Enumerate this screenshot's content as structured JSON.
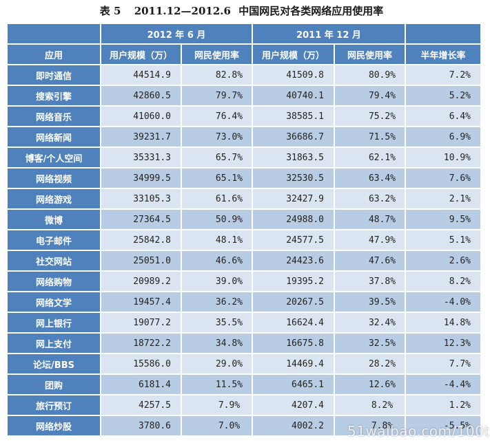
{
  "caption": {
    "table_no": "表 5",
    "date_range": "2011.12—2012.6",
    "title": "中国网民对各类网络应用使用率"
  },
  "header": {
    "period_a": "2012 年 6 月",
    "period_b": "2011 年 12 月",
    "col_app": "应用",
    "col_users_a": "用户规模（万）",
    "col_rate_a": "网民使用率",
    "col_users_b": "用户规模（万）",
    "col_rate_b": "网民使用率",
    "col_growth": "半年增长率"
  },
  "rows": [
    {
      "app": "即时通信",
      "users_2012_6": "44514.9",
      "rate_2012_6": "82.8%",
      "users_2011_12": "41509.8",
      "rate_2011_12": "80.9%",
      "growth": "7.2%"
    },
    {
      "app": "搜索引擎",
      "users_2012_6": "42860.5",
      "rate_2012_6": "79.7%",
      "users_2011_12": "40740.1",
      "rate_2011_12": "79.4%",
      "growth": "5.2%"
    },
    {
      "app": "网络音乐",
      "users_2012_6": "41060.0",
      "rate_2012_6": "76.4%",
      "users_2011_12": "38585.1",
      "rate_2011_12": "75.2%",
      "growth": "6.4%"
    },
    {
      "app": "网络新闻",
      "users_2012_6": "39231.7",
      "rate_2012_6": "73.0%",
      "users_2011_12": "36686.7",
      "rate_2011_12": "71.5%",
      "growth": "6.9%"
    },
    {
      "app": "博客/个人空间",
      "users_2012_6": "35331.3",
      "rate_2012_6": "65.7%",
      "users_2011_12": "31863.5",
      "rate_2011_12": "62.1%",
      "growth": "10.9%"
    },
    {
      "app": "网络视频",
      "users_2012_6": "34999.5",
      "rate_2012_6": "65.1%",
      "users_2011_12": "32530.5",
      "rate_2011_12": "63.4%",
      "growth": "7.6%"
    },
    {
      "app": "网络游戏",
      "users_2012_6": "33105.3",
      "rate_2012_6": "61.6%",
      "users_2011_12": "32427.9",
      "rate_2011_12": "63.2%",
      "growth": "2.1%"
    },
    {
      "app": "微博",
      "users_2012_6": "27364.5",
      "rate_2012_6": "50.9%",
      "users_2011_12": "24988.0",
      "rate_2011_12": "48.7%",
      "growth": "9.5%"
    },
    {
      "app": "电子邮件",
      "users_2012_6": "25842.8",
      "rate_2012_6": "48.1%",
      "users_2011_12": "24577.5",
      "rate_2011_12": "47.9%",
      "growth": "5.1%"
    },
    {
      "app": "社交网站",
      "users_2012_6": "25051.0",
      "rate_2012_6": "46.6%",
      "users_2011_12": "24423.6",
      "rate_2011_12": "47.6%",
      "growth": "2.6%"
    },
    {
      "app": "网络购物",
      "users_2012_6": "20989.2",
      "rate_2012_6": "39.0%",
      "users_2011_12": "19395.2",
      "rate_2011_12": "37.8%",
      "growth": "8.2%"
    },
    {
      "app": "网络文学",
      "users_2012_6": "19457.4",
      "rate_2012_6": "36.2%",
      "users_2011_12": "20267.5",
      "rate_2011_12": "39.5%",
      "growth": "-4.0%"
    },
    {
      "app": "网上银行",
      "users_2012_6": "19077.2",
      "rate_2012_6": "35.5%",
      "users_2011_12": "16624.4",
      "rate_2011_12": "32.4%",
      "growth": "14.8%"
    },
    {
      "app": "网上支付",
      "users_2012_6": "18722.2",
      "rate_2012_6": "34.8%",
      "users_2011_12": "16675.8",
      "rate_2011_12": "32.5%",
      "growth": "12.3%"
    },
    {
      "app": "论坛/BBS",
      "users_2012_6": "15586.0",
      "rate_2012_6": "29.0%",
      "users_2011_12": "14469.4",
      "rate_2011_12": "28.2%",
      "growth": "7.7%"
    },
    {
      "app": "团购",
      "users_2012_6": "6181.4",
      "rate_2012_6": "11.5%",
      "users_2011_12": "6465.1",
      "rate_2011_12": "12.6%",
      "growth": "-4.4%"
    },
    {
      "app": "旅行预订",
      "users_2012_6": "4257.5",
      "rate_2012_6": "7.9%",
      "users_2011_12": "4207.4",
      "rate_2011_12": "8.2%",
      "growth": "1.2%"
    },
    {
      "app": "网络炒股",
      "users_2012_6": "3780.6",
      "rate_2012_6": "7.0%",
      "users_2011_12": "4002.2",
      "rate_2011_12": "7.8%",
      "growth": "-5.5%"
    }
  ],
  "watermark": "51waibao.com/100t",
  "colors": {
    "header_blue": "#4f81bd",
    "row_light": "#dbe5f1",
    "row_dark": "#b8cce4"
  }
}
